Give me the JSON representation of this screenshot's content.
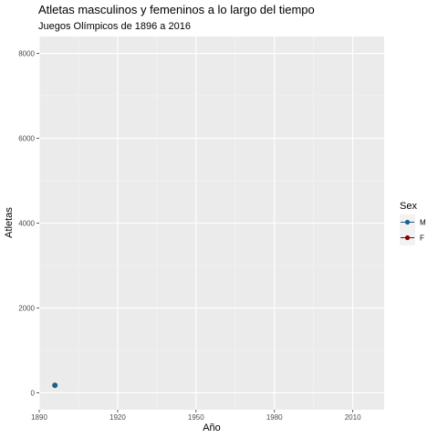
{
  "chart_data": {
    "type": "scatter",
    "title": "Atletas masculinos y femeninos a lo largo del tiempo",
    "subtitle": "Juegos Olímpicos de 1896 a 2016",
    "xlabel": "Año",
    "ylabel": "Atletas",
    "xlim": [
      1890,
      2022
    ],
    "ylim": [
      -400,
      8400
    ],
    "x_ticks": [
      1890,
      1920,
      1950,
      1980,
      2010
    ],
    "y_ticks": [
      0,
      2000,
      4000,
      6000,
      8000
    ],
    "grid": true,
    "legend": {
      "title": "Sex",
      "position": "right",
      "entries": [
        {
          "label": "M",
          "color": "#1b5f8c"
        },
        {
          "label": "F",
          "color": "#8b0000"
        }
      ]
    },
    "series": [
      {
        "name": "M",
        "color": "#1b5f8c",
        "points": [
          {
            "x": 1896,
            "y": 176
          }
        ]
      },
      {
        "name": "F",
        "color": "#8b0000",
        "points": []
      }
    ]
  }
}
